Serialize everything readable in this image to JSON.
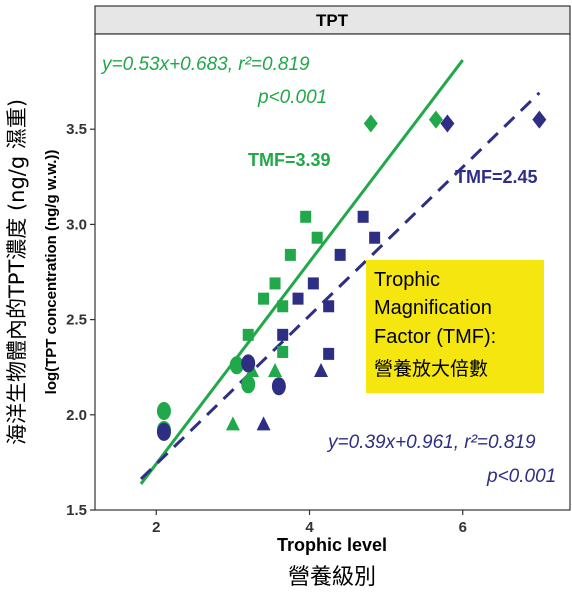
{
  "panel": {
    "title": "TPT"
  },
  "labels": {
    "x_en": "Trophic level",
    "x_zh": "營養級別",
    "y_zh": "海洋生物體內的TPT濃度 (ng/g 濕重)",
    "y_en": "log(TPT concentration (ng/g w.w.))"
  },
  "box": {
    "line1": "Trophic",
    "line2": "Magnification",
    "line3": "Factor (TMF):",
    "line4": "營養放大倍數",
    "color": "#f5e60f"
  },
  "colors": {
    "green": "#21a84a",
    "navy": "#2e2e85"
  },
  "chart_data": {
    "type": "scatter",
    "xlim": [
      1.2,
      7.4
    ],
    "ylim": [
      1.5,
      4.0
    ],
    "xticks": [
      2,
      4,
      6
    ],
    "yticks": [
      1.5,
      2.0,
      2.5,
      3.0,
      3.5
    ],
    "grid": false,
    "series": [
      {
        "color": "#21a84a",
        "equation": {
          "text": "y=0.53x+0.683, r²=0.819",
          "p": "p<0.001"
        },
        "tmf": "TMF=3.39",
        "fit": {
          "slope": 0.53,
          "intercept": 0.683,
          "x_range": [
            1.8,
            6.0
          ],
          "dashed": false
        },
        "points": [
          {
            "x": 2.1,
            "y": 2.02,
            "shape": "circle"
          },
          {
            "x": 2.1,
            "y": 1.92,
            "shape": "circle"
          },
          {
            "x": 3.05,
            "y": 2.26,
            "shape": "circle"
          },
          {
            "x": 3.2,
            "y": 2.16,
            "shape": "circle"
          },
          {
            "x": 3.0,
            "y": 1.95,
            "shape": "triangle"
          },
          {
            "x": 3.25,
            "y": 2.23,
            "shape": "triangle"
          },
          {
            "x": 3.55,
            "y": 2.23,
            "shape": "triangle"
          },
          {
            "x": 3.2,
            "y": 2.42,
            "shape": "square"
          },
          {
            "x": 3.4,
            "y": 2.61,
            "shape": "square"
          },
          {
            "x": 3.55,
            "y": 2.69,
            "shape": "square"
          },
          {
            "x": 3.65,
            "y": 2.57,
            "shape": "square"
          },
          {
            "x": 3.65,
            "y": 2.33,
            "shape": "square"
          },
          {
            "x": 3.75,
            "y": 2.84,
            "shape": "square"
          },
          {
            "x": 3.95,
            "y": 3.04,
            "shape": "square"
          },
          {
            "x": 4.1,
            "y": 2.93,
            "shape": "square"
          },
          {
            "x": 4.8,
            "y": 3.53,
            "shape": "diamond"
          },
          {
            "x": 5.65,
            "y": 3.55,
            "shape": "diamond"
          }
        ]
      },
      {
        "color": "#2e2e85",
        "equation": {
          "text": "y=0.39x+0.961, r²=0.819",
          "p": "p<0.001"
        },
        "tmf": "TMF=2.45",
        "fit": {
          "slope": 0.39,
          "intercept": 0.961,
          "x_range": [
            1.8,
            7.0
          ],
          "dashed": true
        },
        "points": [
          {
            "x": 2.1,
            "y": 1.91,
            "shape": "circle"
          },
          {
            "x": 3.2,
            "y": 2.27,
            "shape": "circle"
          },
          {
            "x": 3.6,
            "y": 2.15,
            "shape": "circle"
          },
          {
            "x": 3.4,
            "y": 1.95,
            "shape": "triangle"
          },
          {
            "x": 4.15,
            "y": 2.23,
            "shape": "triangle"
          },
          {
            "x": 3.65,
            "y": 2.42,
            "shape": "square"
          },
          {
            "x": 3.85,
            "y": 2.61,
            "shape": "square"
          },
          {
            "x": 4.05,
            "y": 2.69,
            "shape": "square"
          },
          {
            "x": 4.25,
            "y": 2.57,
            "shape": "square"
          },
          {
            "x": 4.25,
            "y": 2.32,
            "shape": "square"
          },
          {
            "x": 4.4,
            "y": 2.84,
            "shape": "square"
          },
          {
            "x": 4.7,
            "y": 3.04,
            "shape": "square"
          },
          {
            "x": 4.85,
            "y": 2.93,
            "shape": "square"
          },
          {
            "x": 5.8,
            "y": 3.53,
            "shape": "diamond"
          },
          {
            "x": 7.0,
            "y": 3.55,
            "shape": "diamond"
          }
        ]
      }
    ]
  }
}
